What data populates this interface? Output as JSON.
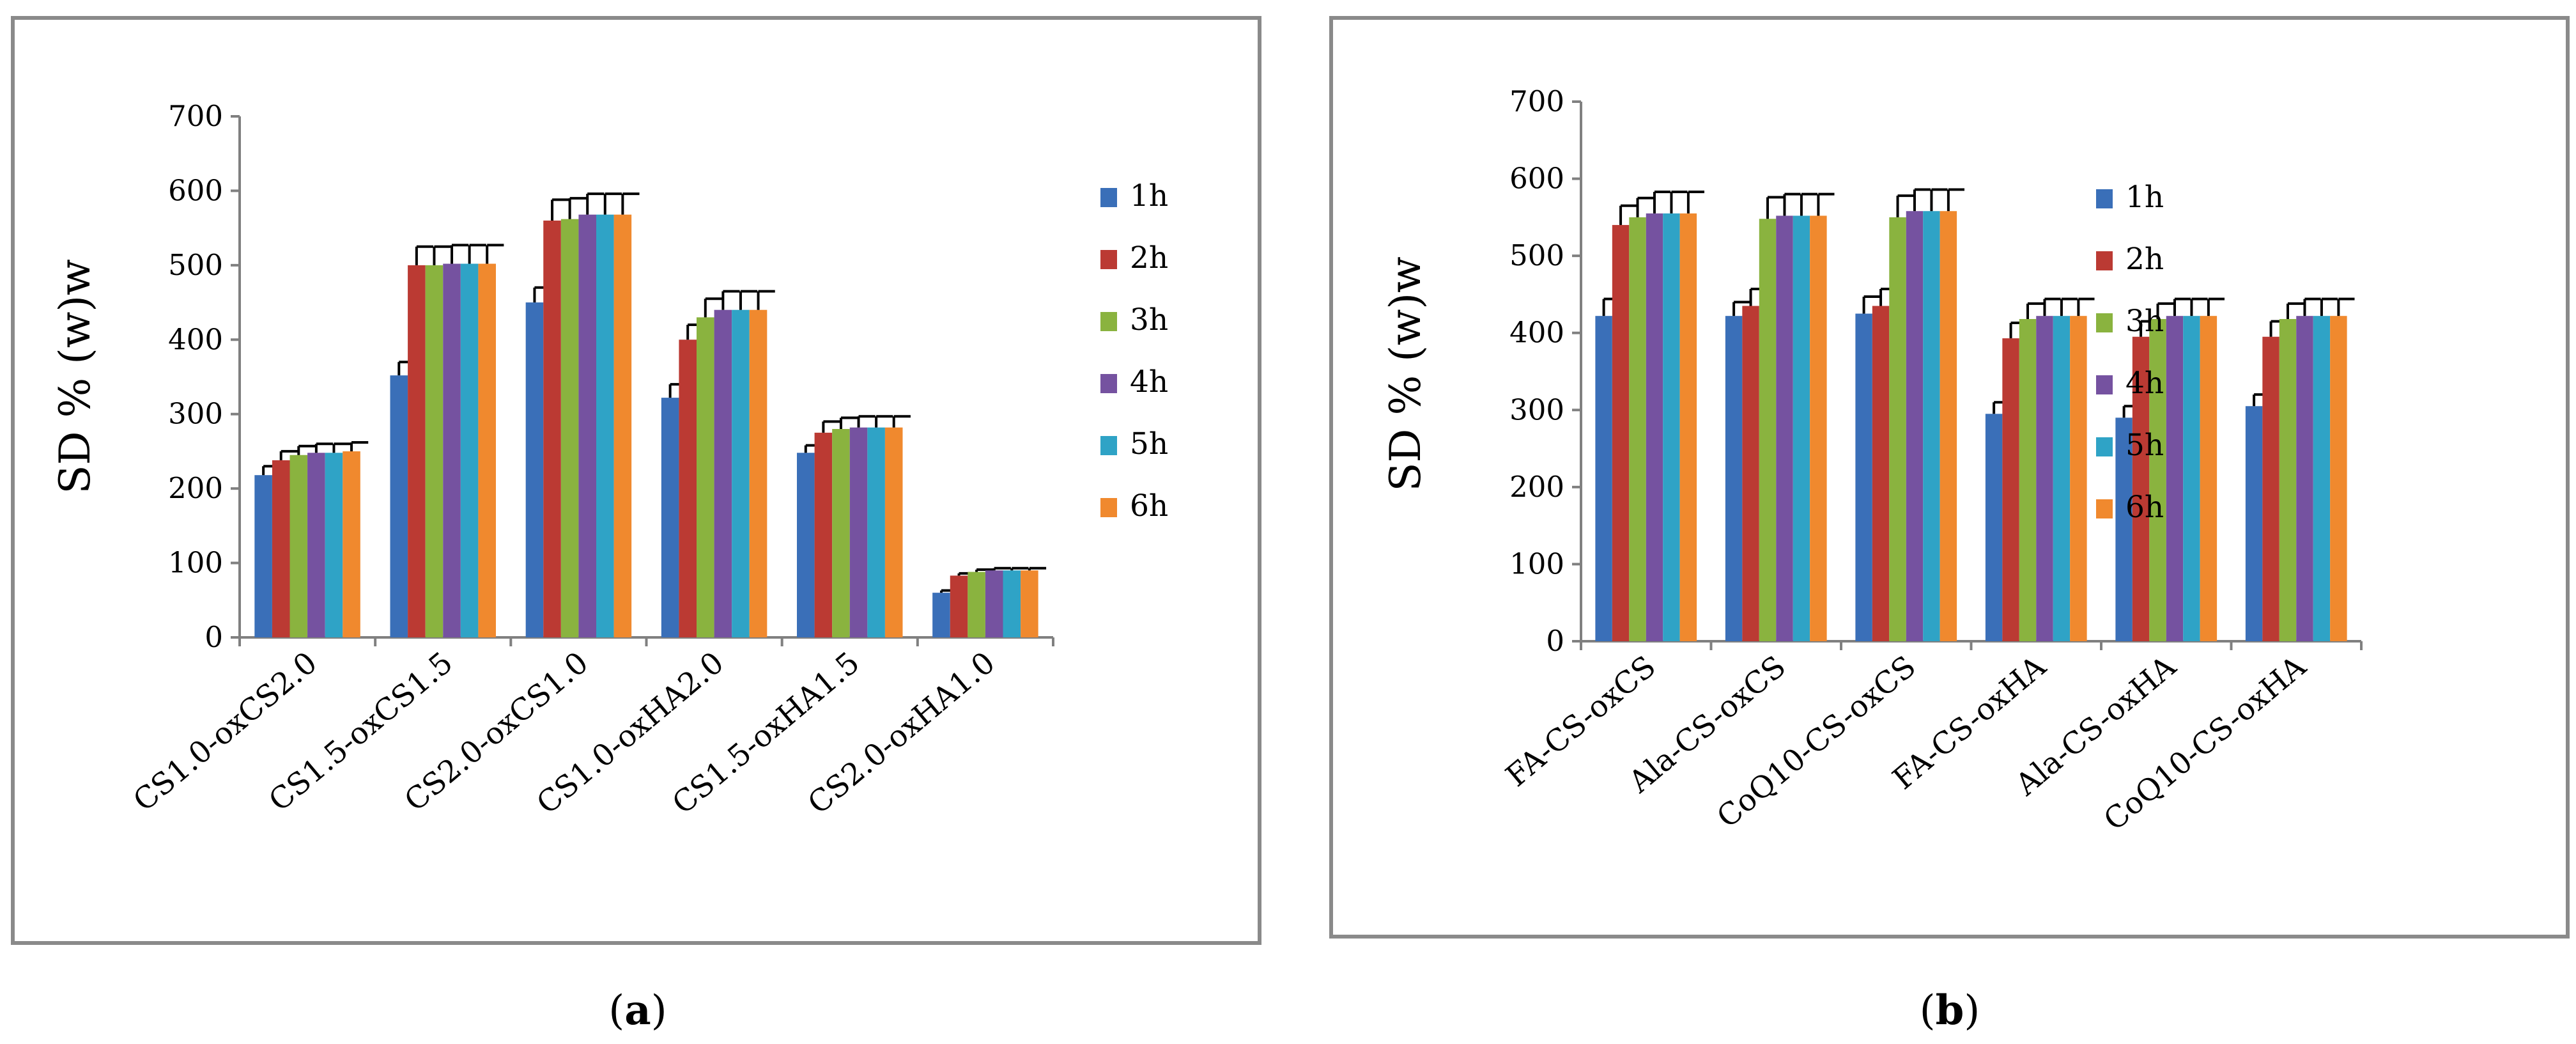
{
  "colors": {
    "1h": "#3a6fb8",
    "2h": "#bb3a33",
    "3h": "#8ab33f",
    "4h": "#7552a0",
    "5h": "#2fa3c6",
    "6h": "#f0892e"
  },
  "chart_data": [
    {
      "type": "bar",
      "panel_label": "a",
      "ylabel": "SD % (w)w",
      "ylim": [
        0,
        700
      ],
      "yticks": [
        "0",
        "100",
        "200",
        "300",
        "400",
        "500",
        "600",
        "700"
      ],
      "categories": [
        "CS1.0-oxCS2.0",
        "CS1.5-oxCS1.5",
        "CS2.0-oxCS1.0",
        "CS1.0-oxHA2.0",
        "CS1.5-oxHA1.5",
        "CS2.0-oxHA1.0"
      ],
      "legend_position": "right",
      "series": [
        {
          "name": "1h",
          "values": [
            218,
            352,
            450,
            322,
            248,
            60
          ],
          "errors": [
            12,
            18,
            20,
            18,
            10,
            3
          ]
        },
        {
          "name": "2h",
          "values": [
            238,
            500,
            560,
            400,
            275,
            83
          ],
          "errors": [
            12,
            25,
            28,
            20,
            15,
            3
          ]
        },
        {
          "name": "3h",
          "values": [
            245,
            500,
            562,
            430,
            280,
            88
          ],
          "errors": [
            12,
            25,
            28,
            25,
            15,
            3
          ]
        },
        {
          "name": "4h",
          "values": [
            248,
            502,
            568,
            440,
            282,
            90
          ],
          "errors": [
            12,
            25,
            28,
            25,
            15,
            3
          ]
        },
        {
          "name": "5h",
          "values": [
            248,
            502,
            568,
            440,
            282,
            90
          ],
          "errors": [
            12,
            25,
            28,
            25,
            15,
            3
          ]
        },
        {
          "name": "6h",
          "values": [
            250,
            502,
            568,
            440,
            282,
            90
          ],
          "errors": [
            12,
            25,
            28,
            25,
            15,
            3
          ]
        }
      ]
    },
    {
      "type": "bar",
      "panel_label": "b",
      "ylabel": "SD % (w)w",
      "ylim": [
        0,
        700
      ],
      "yticks": [
        "0",
        "100",
        "200",
        "300",
        "400",
        "500",
        "600",
        "700"
      ],
      "categories": [
        "FA-CS-oxCS",
        "Ala-CS-oxCS",
        "CoQ10-CS-oxCS",
        "FA-CS-oxHA",
        "Ala-CS-oxHA",
        "CoQ10-CS-oxHA"
      ],
      "legend_position": "right",
      "series": [
        {
          "name": "1h",
          "values": [
            422,
            422,
            425,
            295,
            290,
            305
          ],
          "errors": [
            22,
            18,
            22,
            15,
            15,
            15
          ]
        },
        {
          "name": "2h",
          "values": [
            540,
            435,
            435,
            393,
            395,
            395
          ],
          "errors": [
            25,
            22,
            22,
            20,
            20,
            20
          ]
        },
        {
          "name": "3h",
          "values": [
            550,
            548,
            550,
            418,
            418,
            418
          ],
          "errors": [
            25,
            28,
            28,
            20,
            20,
            20
          ]
        },
        {
          "name": "4h",
          "values": [
            555,
            552,
            558,
            422,
            422,
            422
          ],
          "errors": [
            28,
            28,
            28,
            22,
            22,
            22
          ]
        },
        {
          "name": "5h",
          "values": [
            555,
            552,
            558,
            422,
            422,
            422
          ],
          "errors": [
            28,
            28,
            28,
            22,
            22,
            22
          ]
        },
        {
          "name": "6h",
          "values": [
            555,
            552,
            558,
            422,
            422,
            422
          ],
          "errors": [
            28,
            28,
            28,
            22,
            22,
            22
          ]
        }
      ]
    }
  ]
}
